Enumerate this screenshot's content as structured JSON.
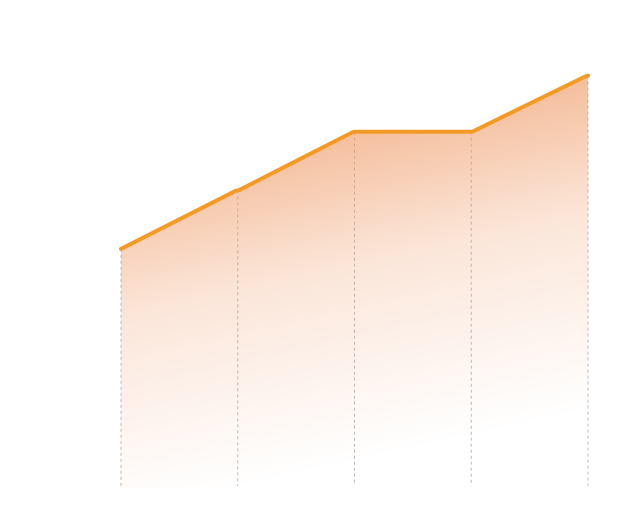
{
  "chart_data": {
    "type": "area",
    "title": "",
    "xlabel": "",
    "ylabel": "",
    "grid": "vertical-dashed",
    "legend": "none",
    "x": [
      1,
      2,
      3,
      4,
      5
    ],
    "xlim": [
      1,
      5
    ],
    "ylim": [
      0,
      100
    ],
    "series": [
      {
        "values": [
          49,
          61,
          73,
          73,
          84.5
        ],
        "line_color": "#f39a26",
        "fill_color": "#ef9a66"
      }
    ]
  }
}
